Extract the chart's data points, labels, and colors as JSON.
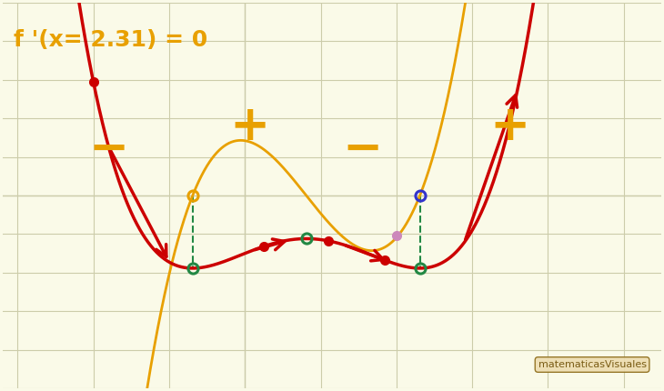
{
  "background_color": "#fafae8",
  "grid_color": "#ccccaa",
  "title_text": "f '(x= 2.31) = 0",
  "title_color": "#e8a000",
  "title_fontsize": 18,
  "xlim": [
    -3.2,
    5.5
  ],
  "ylim": [
    -4.8,
    4.8
  ],
  "func_color": "#e8a000",
  "curve_color": "#cc0000",
  "dashed_color": "#228844",
  "plus_minus_color": "#e8a000",
  "watermark": "matematicasVisuales",
  "r1": -0.69,
  "r2": 0.81,
  "r3": 2.31,
  "f_vertical_shift": -1.5,
  "f_scale": 0.55,
  "fp_scale": 1.1
}
